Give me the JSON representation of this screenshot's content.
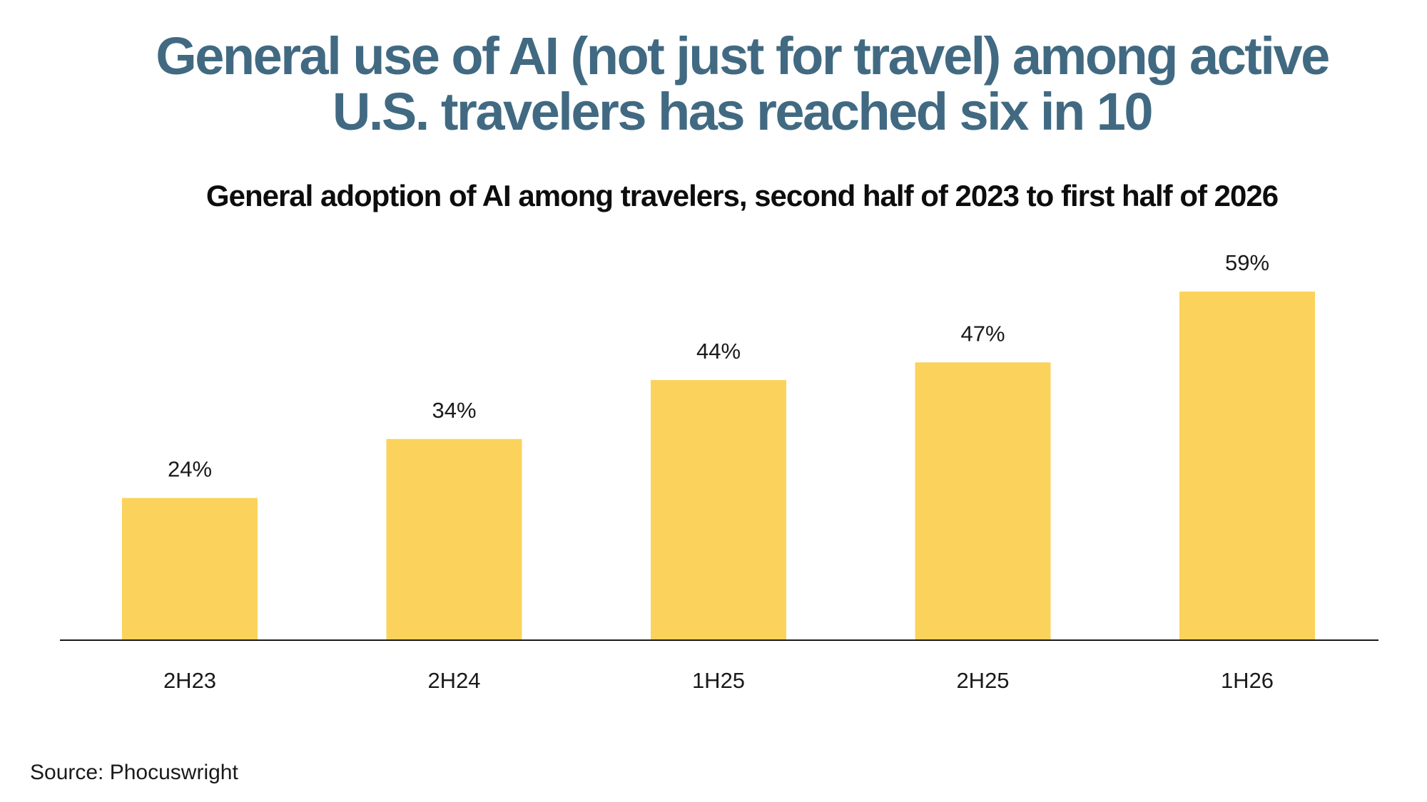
{
  "colors": {
    "headline": "#416a82",
    "bar": "#fbd35c",
    "text": "#1a1a1a",
    "axis": "#1a1a1a"
  },
  "headline": {
    "line1": "General use of AI (not just for travel) among active",
    "line2": "U.S. travelers has reached six in 10"
  },
  "source": "Source: Phocuswright",
  "chart_data": {
    "type": "bar",
    "title": "General adoption of AI among travelers, second half of 2023 to first half of 2026",
    "categories": [
      "2H23",
      "2H24",
      "1H25",
      "2H25",
      "1H26"
    ],
    "values": [
      24,
      34,
      44,
      47,
      59
    ],
    "value_labels": [
      "24%",
      "34%",
      "44%",
      "47%",
      "59%"
    ],
    "xlabel": "",
    "ylabel": "",
    "ylim": [
      0,
      64
    ],
    "grid": false,
    "legend": "none"
  }
}
